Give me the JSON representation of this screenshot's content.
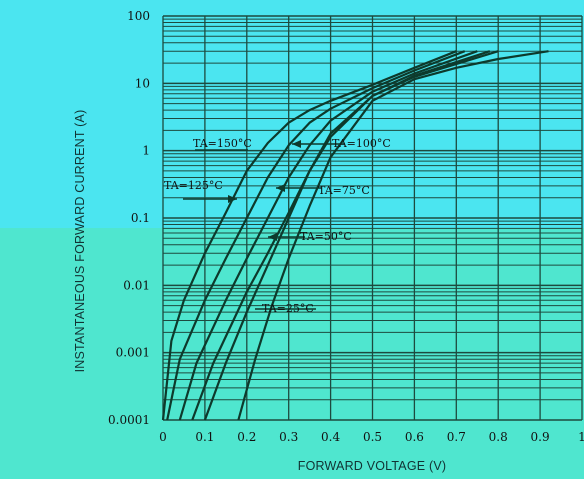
{
  "colors": {
    "background_top": "#4be5f0",
    "background_bottom": "#4fe6cf",
    "grid": "#1d4a3f",
    "curve": "#0d3a2c"
  },
  "chart_data": {
    "type": "line",
    "xlabel": "FORWARD VOLTAGE (V)",
    "ylabel": "INSTANTANEOUS FORWARD CURRENT (A)",
    "xlim": [
      0,
      1
    ],
    "ylim": [
      0.0001,
      100
    ],
    "y_scale": "log",
    "grid": true,
    "x_ticks": [
      "0",
      "0.1",
      "0.2",
      "0.3",
      "0.4",
      "0.5",
      "0.6",
      "0.7",
      "0.8",
      "0.9",
      "1"
    ],
    "y_ticks": [
      "100",
      "10",
      "1",
      "0.1",
      "0.01",
      "0.001",
      "0.0001"
    ],
    "series": [
      {
        "name": "TA=150°C",
        "x": [
          0.0,
          0.02,
          0.05,
          0.1,
          0.15,
          0.2,
          0.25,
          0.3,
          0.35,
          0.4,
          0.5,
          0.6,
          0.7
        ],
        "y": [
          0.0001,
          0.0015,
          0.006,
          0.03,
          0.12,
          0.5,
          1.3,
          2.6,
          4.0,
          5.5,
          9.5,
          17,
          30
        ]
      },
      {
        "name": "TA=125°C",
        "x": [
          0.01,
          0.04,
          0.1,
          0.15,
          0.2,
          0.25,
          0.3,
          0.35,
          0.4,
          0.5,
          0.6,
          0.72
        ],
        "y": [
          0.0001,
          0.0008,
          0.006,
          0.025,
          0.1,
          0.4,
          1.2,
          2.6,
          4.2,
          8.5,
          15.5,
          30
        ]
      },
      {
        "name": "TA=100°C",
        "x": [
          0.04,
          0.08,
          0.15,
          0.2,
          0.25,
          0.3,
          0.35,
          0.4,
          0.5,
          0.6,
          0.75
        ],
        "y": [
          0.0001,
          0.0007,
          0.006,
          0.025,
          0.1,
          0.4,
          1.2,
          2.8,
          7.5,
          14,
          30
        ]
      },
      {
        "name": "TA=75°C",
        "x": [
          0.07,
          0.12,
          0.2,
          0.25,
          0.3,
          0.35,
          0.4,
          0.5,
          0.6,
          0.78
        ],
        "y": [
          0.0001,
          0.0007,
          0.008,
          0.03,
          0.12,
          0.5,
          1.6,
          6.5,
          13,
          30
        ]
      },
      {
        "name": "TA=50°C",
        "x": [
          0.1,
          0.15,
          0.2,
          0.25,
          0.3,
          0.35,
          0.4,
          0.5,
          0.6,
          0.8
        ],
        "y": [
          0.0001,
          0.0007,
          0.004,
          0.02,
          0.1,
          0.5,
          1.8,
          6.5,
          12.5,
          30
        ]
      },
      {
        "name": "TA=25°C",
        "x": [
          0.18,
          0.22,
          0.26,
          0.3,
          0.35,
          0.4,
          0.5,
          0.6,
          0.7,
          0.8,
          0.92
        ],
        "y": [
          0.0001,
          0.0008,
          0.005,
          0.025,
          0.15,
          0.8,
          5.5,
          11.5,
          17,
          23,
          30
        ]
      }
    ],
    "annotations": [
      {
        "text": "TA=150°C",
        "series": "TA=150°C"
      },
      {
        "text": "TA=125°C",
        "series": "TA=125°C"
      },
      {
        "text": "TA=100°C",
        "series": "TA=100°C"
      },
      {
        "text": "TA=75°C",
        "series": "TA=75°C"
      },
      {
        "text": "TA=50°C",
        "series": "TA=50°C"
      },
      {
        "text": "TA=25°C",
        "series": "TA=25°C"
      }
    ]
  }
}
